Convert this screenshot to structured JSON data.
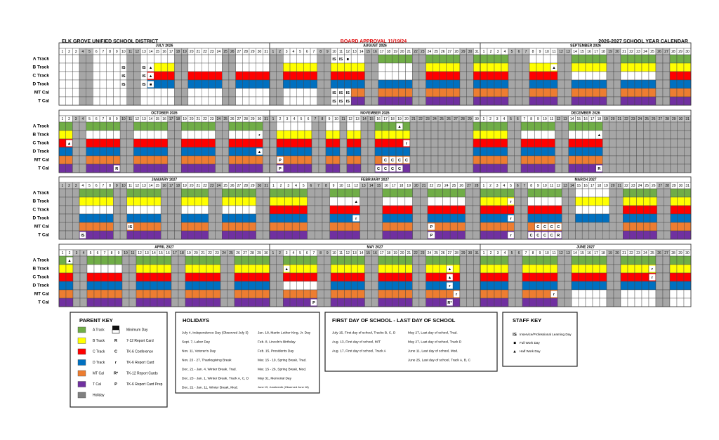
{
  "header": {
    "district": "ELK GROVE UNIFIED SCHOOL DISTRICT",
    "approval": "BOARD APPROVAL 11/19/24",
    "title": "2026-2027 SCHOOL YEAR CALENDAR"
  },
  "tracks": [
    {
      "name": "A Track",
      "color": "#70ad47"
    },
    {
      "name": "B Track",
      "color": "#ffff00"
    },
    {
      "name": "C Track",
      "color": "#ff0000"
    },
    {
      "name": "D Track",
      "color": "#0070c0"
    },
    {
      "name": "MT Cal",
      "color": "#ed7d31"
    },
    {
      "name": "T Cal",
      "color": "#7030a0"
    }
  ],
  "day_numbers": [
    1,
    2,
    3,
    4,
    5,
    6,
    7,
    8,
    9,
    10,
    11,
    12,
    13,
    14,
    15,
    16,
    17,
    18,
    19,
    20,
    21,
    22,
    23,
    24,
    25,
    26,
    27,
    28,
    29,
    30,
    31
  ],
  "months": [
    {
      "title": "JULY 2026",
      "rows": [
        {
          "codes": "...hh.....hh.....hh.....hh....."
        },
        {
          "codes": "...hh.....hh..xxxhh.....hh.....",
          "notes": {
            "10": "IS",
            "13": "IS",
            "14": "▲"
          }
        },
        {
          "codes": "...hh.....hh.xxxxhhxxxxxhhxxxxx",
          "notes": {
            "10": "IS",
            "13": "IS",
            "14": "▲"
          }
        },
        {
          "codes": "...hh.....hh.xxxxhhxxxxxhhxxxxx",
          "notes": {
            "10": "IS",
            "13": "IS",
            "14": "■"
          }
        },
        {
          "codes": "...hh.....hh.....hh.....hh....."
        },
        {
          "codes": "...hh.....hh.....hh.....hh....."
        }
      ]
    },
    {
      "title": "AUGUST 2026",
      "rows": [
        {
          "codes": "hh.....hh.....hhxxxxxhhxxxxxhhx",
          "notes": {
            "10": "IS",
            "11": "IS",
            "12": "■"
          }
        },
        {
          "codes": "hhxxxxxhhxxxxxhh.....hhxxxxxhhx"
        },
        {
          "codes": "hhxxxxxhhxxxxxhh.....hhxxxxxhhx"
        },
        {
          "codes": "hhxxxxxhhxxxxxhhxxxxxhhxxxxxhhx"
        },
        {
          "codes": "hh.....hh...xxhhxxxxxhhxxxxxhhx",
          "notes": {
            "10": "IS",
            "11": "IS",
            "12": "IS"
          }
        },
        {
          "codes": "hh.....hh...xxhhxxxxxhhxxxxxhhx",
          "notes": {
            "10": "IS",
            "11": "IS",
            "12": "IS"
          }
        }
      ]
    },
    {
      "title": "SEPTEMBER 2026",
      "rows": [
        {
          "codes": "xxxxhhh....hhxxxxxhhxxxxxhhxxx"
        },
        {
          "codes": "xxxxhhhxxxxhhxxxxxhhxxxxxhhxxx",
          "notes": {
            "11": "▲"
          }
        },
        {
          "codes": "xxxxhhhxxxxhh.....hh.....hhxxx"
        },
        {
          "codes": "xxxxhhhxxxxhhxxxxxhhxxxxxhhxxx"
        },
        {
          "codes": "xxxxhhhxxxxhhxxxxxhhxxxxxhhxxx"
        },
        {
          "codes": "xxxxhhhxxxxhhxxxxxhhxxxxxhhxxx"
        }
      ]
    },
    {
      "title": "OCTOBER 2026",
      "rows": [
        {
          "codes": "xxhhxxxxxhhxxxxxhhxxxxxhhxxxxxh"
        },
        {
          "codes": "xxhh.....hh.....hh.....hh.....h",
          "notes": {
            "30": "r"
          }
        },
        {
          "codes": "xxhhxxxxxhhxxxxxhhxxxxxhhxxxxxh",
          "notes": {
            "2": "▲"
          }
        },
        {
          "codes": "xxhhxxxxxhhxxxxxhhxxxxxhhxxxxxh",
          "notes": {
            "30": "▲"
          }
        },
        {
          "codes": "xxhhxxxxxhhxxxxxhhxxxxxhhxxxxxh"
        },
        {
          "codes": "xxhhxxxxxhhxxxxxhhxxxxxhhxxxxxh",
          "notes": {
            "9": "R"
          }
        }
      ]
    },
    {
      "title": "NOVEMBER 2026",
      "rows": [
        {
          "codes": "h.....hh..h..hhxxxxxhhhhhhhhhx",
          "notes": {
            "19": "▲"
          }
        },
        {
          "codes": "hxxxxxhhxxhxxhhxxxxxhhhhhhhhhx"
        },
        {
          "codes": "hxxxxxhhxxhxxhhxxxxxhhhhhhhhhx",
          "notes": {
            "20": "r"
          }
        },
        {
          "codes": "hxxxxxhhxxhxxhhxxxxxhhhhhhhhhx"
        },
        {
          "codes": "hxxxxxhhxxhxxhhxxxxxhhhhhhhhhx",
          "notes": {
            "2": "P",
            "17": "C",
            "18": "C",
            "19": "C",
            "20": "C"
          }
        },
        {
          "codes": "hxxxxxhhxxhxxhhxxxxxhhhhhhhhhx",
          "notes": {
            "2": "P",
            "16": "C",
            "17": "C",
            "18": "C",
            "19": "C"
          }
        }
      ]
    },
    {
      "title": "DECEMBER 2026",
      "rows": [
        {
          "codes": "xxxxhhxxxxxhhxxxxxhhhhhhhhhhhhh"
        },
        {
          "codes": "xxxxhh.....hh.....hhhhhhhhhhhhh",
          "notes": {
            "18": "▲"
          }
        },
        {
          "codes": "xxxxhhxxxxxhhxxxxxhhhhhhhhhhhhh"
        },
        {
          "codes": "xxxxhhxxxxxhhxxxxxhhhhhhhhhhhhh"
        },
        {
          "codes": "xxxxhhxxxxxhhxxxxxhhhhhhhhhhhhh"
        },
        {
          "codes": "xxxxhhxxxxxhhxxxxxhhhhhhhhhhhhh",
          "notes": {
            "18": "R"
          }
        }
      ]
    },
    {
      "title": "JANUARY 2027",
      "rows": [
        {
          "codes": "hhhxxxxxhhxxxxxhhhxxxxhhxxxxxhh"
        },
        {
          "codes": "hhhxxxxxhhxxxxxhhhxxxxhhxxxxxhh"
        },
        {
          "codes": "hhh.....hh.....hhh....hh.....hh"
        },
        {
          "codes": "hhhxxxxxhhxxxxxhhhxxxxhhxxxxxhh"
        },
        {
          "codes": "hhhxxxxxhhxxxxxhhhxxxxhhxxxxxhh",
          "notes": {
            "11": "IS"
          }
        },
        {
          "codes": "hhhxxxxxhhxxxxxhhhxxxxhhxxxxxhh",
          "notes": {
            "4": "IS"
          }
        }
      ]
    },
    {
      "title": "FEBRUARY 2027",
      "rows": [
        {
          "codes": "xxxxxhhhxxxxhhhxxxxhhxxxxxhh"
        },
        {
          "codes": "xxxxxhhh....hhh....hh.....hh",
          "notes": {
            "12": "▲"
          }
        },
        {
          "codes": "xxxxxhhhxxxxhhhxxxxhhxxxxxhh"
        },
        {
          "codes": "xxxxxhhhxxxxhhhxxxxhhxxxxxhh",
          "notes": {
            "12": "r"
          }
        },
        {
          "codes": "xxxxxhhhxxxxhhhxxxxhhxxxxxhh",
          "notes": {
            "22": "P"
          }
        },
        {
          "codes": "xxxxxhhhxxxxhhhxxxxhhxxxxxhh",
          "notes": {
            "22": "P"
          }
        }
      ]
    },
    {
      "title": "MARCH 2027",
      "rows": [
        {
          "codes": "xxxxxhhxxxxxhh.....hhxxxxxhhxxx"
        },
        {
          "codes": "xxxxxhh.....hhxxxxxhhxxxxxhhxxx",
          "notes": {
            "5": "r"
          }
        },
        {
          "codes": "xxxxxhhxxxxxhh.....hhxxxxxhhxxx"
        },
        {
          "codes": "xxxxxhhxxxxxhhxxxxxhhxxxxxhhxxx",
          "notes": {
            "5": "r"
          }
        },
        {
          "codes": "xxxxxhhxxxxxhhhhhhhhhxxxxxhhxxx",
          "notes": {
            "9": "C",
            "10": "C",
            "11": "C",
            "12": "C"
          }
        },
        {
          "codes": "xxxxxhhxxxxxhhhhhhhhhxxxxxhhxxx",
          "notes": {
            "5": "r",
            "8": "C",
            "9": "C",
            "10": "C",
            "11": "C",
            "12": "R"
          }
        }
      ]
    },
    {
      "title": "APRIL 2027",
      "rows": [
        {
          "codes": "xxhhxxxxxhhxxxxxhhxxxxxhhxxxxx",
          "notes": {
            "2": "▲"
          }
        },
        {
          "codes": "xxhh.....hhxxxxxhhxxxxxhhxxxxx"
        },
        {
          "codes": "xxhhxxxxxhhxxxxxhhxxxxxhhxxxxx"
        },
        {
          "codes": "xxhhxxxxxhhxxxxxhhxxxxxhhxxxxx"
        },
        {
          "codes": "xxhhxxxxxhhxxxxxhhxxxxxhhxxxxx"
        },
        {
          "codes": "xxhhxxxxxhhxxxxxhhxxxxxhhxxxxx"
        }
      ]
    },
    {
      "title": "MAY 2027",
      "rows": [
        {
          "codes": "hhxxxxxhhxxxxxhhxxxxxhhxxxxxhhh"
        },
        {
          "codes": "hhxxxxxhhxxxxxhhxxxxxhhxxxxxhhh",
          "notes": {
            "3": "▲",
            "27": "▲"
          }
        },
        {
          "codes": "hhxxxxxhhxxxxxhhxxxxxhhxxxxxhhh",
          "notes": {
            "27": "▲"
          }
        },
        {
          "codes": "hh.....hhxxxxxhhxxxxxhhxxxxxhhh",
          "notes": {
            "27": "r"
          }
        },
        {
          "codes": "hhxxxxxhhxxxxxhhxxxxxhhxxxxxhhh",
          "notes": {
            "28": "r"
          }
        },
        {
          "codes": "hhxxxxxhhxxxxxhhxxxxxhhxxxxxhhh",
          "notes": {
            "7": "P",
            "27": "R*"
          }
        }
      ]
    },
    {
      "title": "JUNE 2027",
      "rows": [
        {
          "codes": "xxxxhhxxxxxhhxxxxxhhxxxxxhhxxx"
        },
        {
          "codes": "xxxxhhxxxxxhhxxxxxhhxxxxxhhxxx",
          "notes": {
            "25": "r"
          }
        },
        {
          "codes": "xxxxhhxxxxxhhxxxxxhhxxxxxhhxxx",
          "notes": {
            "25": "r"
          }
        },
        {
          "codes": "xxxxhhxxxxxhhxxxxxhhxxxxxhhxxx"
        },
        {
          "codes": "xxxxhhxxxxxhh.....hh.....hh...",
          "notes": {
            "11": "r"
          }
        },
        {
          "codes": "xxxxhhxxxxxhh.....hh.....hh..."
        }
      ]
    }
  ],
  "parent_key": {
    "title": "PARENT KEY",
    "swatches": [
      {
        "label": "A Track",
        "color": "#70ad47"
      },
      {
        "label": "B Track",
        "color": "#ffff00"
      },
      {
        "label": "C Track",
        "color": "#ff0000"
      },
      {
        "label": "D Track",
        "color": "#0070c0"
      },
      {
        "label": "MT Cal",
        "color": "#ed7d31"
      },
      {
        "label": "T Cal",
        "color": "#7030a0"
      },
      {
        "label": "Holiday",
        "color": "#808080"
      }
    ],
    "codes": [
      {
        "label": "Minimum Day"
      },
      {
        "symbol": "R",
        "label": "7-12 Report Card"
      },
      {
        "symbol": "C",
        "label": "TK-6 Conference"
      },
      {
        "symbol": "r",
        "label": "TK-6 Report Card"
      },
      {
        "symbol": "R*",
        "label": "TK-12 Report Cards"
      },
      {
        "symbol": "P",
        "label": "TK-6 Report Card Prep"
      }
    ]
  },
  "holidays": {
    "title": "HOLIDAYS",
    "columns": [
      [
        "July 4, Independence Day (Observed July 3)",
        "Sept. 7, Labor Day",
        "Nov. 11, Veteran's Day",
        "Nov. 23 - 27, Thanksgiving Break",
        "Dec. 21 - Jan. 4, Winter Break, Trad.",
        "Dec. 23 - Jan. 1, Winter Break, Track A, C, D",
        "Dec. 21 - Jan. 11, Winter Break, Mod."
      ],
      [
        "Jan. 18, Martin Luther King, Jr. Day",
        "Feb. 8, Lincoln's Birthday",
        "Feb. 15, Presidents Day",
        "Mar. 15 - 19, Spring Break, Trad.",
        "Mar. 15 - 26, Spring Break, Mod.",
        "May 31, Memorial Day",
        "June 19, Juneteenth (Observed June 18)"
      ]
    ]
  },
  "first_last": {
    "title": "FIRST DAY OF SCHOOL - LAST DAY OF SCHOOL",
    "columns": [
      [
        "July 15, First day of school, Tracks B, C, D",
        "Aug. 13, First day of school, M/T",
        "Aug. 17, First day of school, Track A"
      ],
      [
        "May 27, Last day of school, Trad.",
        "May 27, Last day of school, Track D",
        "June 11, Last day of school, Mod.",
        "June 25, Last day of school, Track A, B, C"
      ]
    ]
  },
  "staff_key": {
    "title": "STAFF KEY",
    "items": [
      {
        "symbol": "IS",
        "label": "Inservice/Professional Learning Day"
      },
      {
        "symbol": "■",
        "label": "Full Work Day"
      },
      {
        "symbol": "▲",
        "label": "Half Work Day"
      }
    ]
  }
}
